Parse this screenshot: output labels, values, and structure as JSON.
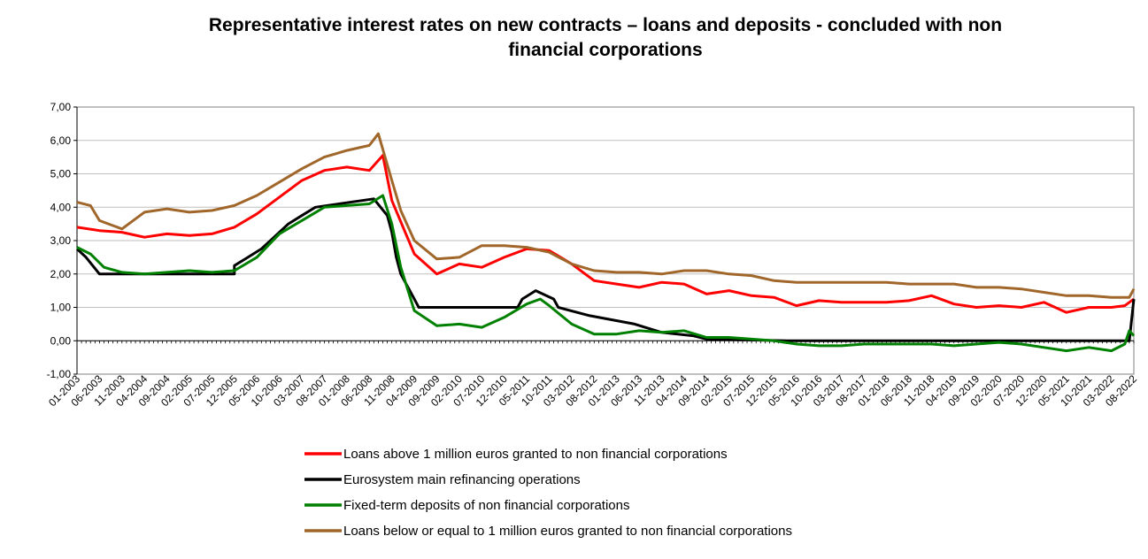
{
  "chart_data": {
    "type": "line",
    "title_line1": "Representative interest rates on new contracts – loans and deposits - concluded with non",
    "title_line2": "financial corporations",
    "xlabel": "",
    "ylabel": "",
    "ylim": [
      -1,
      7
    ],
    "yticks": [
      "-1,00",
      "0,00",
      "1,00",
      "2,00",
      "3,00",
      "4,00",
      "5,00",
      "6,00",
      "7,00"
    ],
    "grid": "horizontal",
    "legend_position": "bottom-center",
    "x_tick_labels": [
      "01-2003",
      "06-2003",
      "11-2003",
      "04-2004",
      "09-2004",
      "02-2005",
      "07-2005",
      "12-2005",
      "05-2006",
      "10-2006",
      "03-2007",
      "08-2007",
      "01-2008",
      "06-2008",
      "11-2008",
      "04-2009",
      "09-2009",
      "02-2010",
      "07-2010",
      "12-2010",
      "05-2011",
      "10-2011",
      "03-2012",
      "08-2012",
      "01-2013",
      "06-2013",
      "11-2013",
      "04-2014",
      "09-2014",
      "02-2015",
      "07-2015",
      "12-2015",
      "05-2016",
      "10-2016",
      "03-2017",
      "08-2017",
      "01-2018",
      "06-2018",
      "11-2018",
      "04-2019",
      "09-2019",
      "02-2020",
      "07-2020",
      "12-2020",
      "05-2021",
      "10-2021",
      "03-2022",
      "08-2022"
    ],
    "x_start": "01-2003",
    "x_end": "08-2022",
    "series": [
      {
        "name": "Loans above 1 million euros granted to non financial corporations",
        "color": "#ff0000",
        "points": [
          [
            "01-2003",
            3.4
          ],
          [
            "06-2003",
            3.3
          ],
          [
            "11-2003",
            3.25
          ],
          [
            "04-2004",
            3.1
          ],
          [
            "09-2004",
            3.2
          ],
          [
            "02-2005",
            3.15
          ],
          [
            "07-2005",
            3.2
          ],
          [
            "12-2005",
            3.4
          ],
          [
            "05-2006",
            3.8
          ],
          [
            "10-2006",
            4.3
          ],
          [
            "03-2007",
            4.8
          ],
          [
            "08-2007",
            5.1
          ],
          [
            "01-2008",
            5.2
          ],
          [
            "06-2008",
            5.1
          ],
          [
            "09-2008",
            5.55
          ],
          [
            "11-2008",
            4.2
          ],
          [
            "04-2009",
            2.6
          ],
          [
            "09-2009",
            2.0
          ],
          [
            "02-2010",
            2.3
          ],
          [
            "07-2010",
            2.2
          ],
          [
            "12-2010",
            2.5
          ],
          [
            "05-2011",
            2.75
          ],
          [
            "10-2011",
            2.7
          ],
          [
            "03-2012",
            2.3
          ],
          [
            "08-2012",
            1.8
          ],
          [
            "01-2013",
            1.7
          ],
          [
            "06-2013",
            1.6
          ],
          [
            "11-2013",
            1.75
          ],
          [
            "04-2014",
            1.7
          ],
          [
            "09-2014",
            1.4
          ],
          [
            "02-2015",
            1.5
          ],
          [
            "07-2015",
            1.35
          ],
          [
            "12-2015",
            1.3
          ],
          [
            "05-2016",
            1.05
          ],
          [
            "10-2016",
            1.2
          ],
          [
            "03-2017",
            1.15
          ],
          [
            "08-2017",
            1.15
          ],
          [
            "01-2018",
            1.15
          ],
          [
            "06-2018",
            1.2
          ],
          [
            "11-2018",
            1.35
          ],
          [
            "04-2019",
            1.1
          ],
          [
            "09-2019",
            1.0
          ],
          [
            "02-2020",
            1.05
          ],
          [
            "07-2020",
            1.0
          ],
          [
            "12-2020",
            1.15
          ],
          [
            "05-2021",
            0.85
          ],
          [
            "10-2021",
            1.0
          ],
          [
            "03-2022",
            1.0
          ],
          [
            "06-2022",
            1.05
          ],
          [
            "08-2022",
            1.25
          ]
        ]
      },
      {
        "name": "Eurosystem main refinancing operations",
        "color": "#000000",
        "points": [
          [
            "01-2003",
            2.75
          ],
          [
            "03-2003",
            2.5
          ],
          [
            "06-2003",
            2.0
          ],
          [
            "12-2005",
            2.0
          ],
          [
            "12-2005",
            2.25
          ],
          [
            "03-2006",
            2.5
          ],
          [
            "06-2006",
            2.75
          ],
          [
            "08-2006",
            3.0
          ],
          [
            "10-2006",
            3.25
          ],
          [
            "12-2006",
            3.5
          ],
          [
            "03-2007",
            3.75
          ],
          [
            "06-2007",
            4.0
          ],
          [
            "07-2008",
            4.25
          ],
          [
            "10-2008",
            3.75
          ],
          [
            "11-2008",
            3.25
          ],
          [
            "12-2008",
            2.5
          ],
          [
            "01-2009",
            2.0
          ],
          [
            "03-2009",
            1.5
          ],
          [
            "04-2009",
            1.25
          ],
          [
            "05-2009",
            1.0
          ],
          [
            "03-2011",
            1.0
          ],
          [
            "04-2011",
            1.25
          ],
          [
            "07-2011",
            1.5
          ],
          [
            "11-2011",
            1.25
          ],
          [
            "12-2011",
            1.0
          ],
          [
            "07-2012",
            0.75
          ],
          [
            "05-2013",
            0.5
          ],
          [
            "11-2013",
            0.25
          ],
          [
            "06-2014",
            0.15
          ],
          [
            "09-2014",
            0.05
          ],
          [
            "03-2016",
            0.0
          ],
          [
            "07-2022",
            0.0
          ],
          [
            "08-2022",
            1.25
          ]
        ]
      },
      {
        "name": "Fixed-term deposits of non financial corporations",
        "color": "#008000",
        "points": [
          [
            "01-2003",
            2.8
          ],
          [
            "04-2003",
            2.6
          ],
          [
            "07-2003",
            2.2
          ],
          [
            "11-2003",
            2.05
          ],
          [
            "04-2004",
            2.0
          ],
          [
            "09-2004",
            2.05
          ],
          [
            "02-2005",
            2.1
          ],
          [
            "07-2005",
            2.05
          ],
          [
            "12-2005",
            2.1
          ],
          [
            "05-2006",
            2.5
          ],
          [
            "10-2006",
            3.2
          ],
          [
            "03-2007",
            3.6
          ],
          [
            "08-2007",
            4.0
          ],
          [
            "01-2008",
            4.05
          ],
          [
            "06-2008",
            4.1
          ],
          [
            "09-2008",
            4.35
          ],
          [
            "11-2008",
            3.5
          ],
          [
            "01-2009",
            2.2
          ],
          [
            "04-2009",
            0.9
          ],
          [
            "09-2009",
            0.45
          ],
          [
            "02-2010",
            0.5
          ],
          [
            "07-2010",
            0.4
          ],
          [
            "12-2010",
            0.7
          ],
          [
            "05-2011",
            1.1
          ],
          [
            "08-2011",
            1.25
          ],
          [
            "10-2011",
            1.05
          ],
          [
            "03-2012",
            0.5
          ],
          [
            "08-2012",
            0.2
          ],
          [
            "01-2013",
            0.2
          ],
          [
            "06-2013",
            0.3
          ],
          [
            "11-2013",
            0.25
          ],
          [
            "04-2014",
            0.3
          ],
          [
            "09-2014",
            0.1
          ],
          [
            "02-2015",
            0.1
          ],
          [
            "07-2015",
            0.05
          ],
          [
            "12-2015",
            0.0
          ],
          [
            "05-2016",
            -0.1
          ],
          [
            "10-2016",
            -0.15
          ],
          [
            "03-2017",
            -0.15
          ],
          [
            "08-2017",
            -0.1
          ],
          [
            "01-2018",
            -0.1
          ],
          [
            "06-2018",
            -0.1
          ],
          [
            "11-2018",
            -0.1
          ],
          [
            "04-2019",
            -0.15
          ],
          [
            "09-2019",
            -0.1
          ],
          [
            "02-2020",
            -0.05
          ],
          [
            "07-2020",
            -0.1
          ],
          [
            "12-2020",
            -0.2
          ],
          [
            "05-2021",
            -0.3
          ],
          [
            "10-2021",
            -0.2
          ],
          [
            "03-2022",
            -0.3
          ],
          [
            "06-2022",
            -0.1
          ],
          [
            "07-2022",
            0.3
          ],
          [
            "08-2022",
            0.15
          ]
        ]
      },
      {
        "name": "Loans below or equal to 1 million euros granted to non financial corporations",
        "color": "#a0662a",
        "points": [
          [
            "01-2003",
            4.15
          ],
          [
            "04-2003",
            4.05
          ],
          [
            "06-2003",
            3.6
          ],
          [
            "11-2003",
            3.35
          ],
          [
            "04-2004",
            3.85
          ],
          [
            "09-2004",
            3.95
          ],
          [
            "02-2005",
            3.85
          ],
          [
            "07-2005",
            3.9
          ],
          [
            "12-2005",
            4.05
          ],
          [
            "05-2006",
            4.35
          ],
          [
            "10-2006",
            4.75
          ],
          [
            "03-2007",
            5.15
          ],
          [
            "08-2007",
            5.5
          ],
          [
            "01-2008",
            5.7
          ],
          [
            "06-2008",
            5.85
          ],
          [
            "08-2008",
            6.2
          ],
          [
            "11-2008",
            4.8
          ],
          [
            "01-2009",
            3.9
          ],
          [
            "04-2009",
            3.0
          ],
          [
            "09-2009",
            2.45
          ],
          [
            "02-2010",
            2.5
          ],
          [
            "07-2010",
            2.85
          ],
          [
            "12-2010",
            2.85
          ],
          [
            "05-2011",
            2.8
          ],
          [
            "10-2011",
            2.65
          ],
          [
            "03-2012",
            2.3
          ],
          [
            "08-2012",
            2.1
          ],
          [
            "01-2013",
            2.05
          ],
          [
            "06-2013",
            2.05
          ],
          [
            "11-2013",
            2.0
          ],
          [
            "04-2014",
            2.1
          ],
          [
            "09-2014",
            2.1
          ],
          [
            "02-2015",
            2.0
          ],
          [
            "07-2015",
            1.95
          ],
          [
            "12-2015",
            1.8
          ],
          [
            "05-2016",
            1.75
          ],
          [
            "10-2016",
            1.75
          ],
          [
            "03-2017",
            1.75
          ],
          [
            "08-2017",
            1.75
          ],
          [
            "01-2018",
            1.75
          ],
          [
            "06-2018",
            1.7
          ],
          [
            "11-2018",
            1.7
          ],
          [
            "04-2019",
            1.7
          ],
          [
            "09-2019",
            1.6
          ],
          [
            "02-2020",
            1.6
          ],
          [
            "07-2020",
            1.55
          ],
          [
            "12-2020",
            1.45
          ],
          [
            "05-2021",
            1.35
          ],
          [
            "10-2021",
            1.35
          ],
          [
            "03-2022",
            1.3
          ],
          [
            "07-2022",
            1.3
          ],
          [
            "08-2022",
            1.55
          ]
        ]
      }
    ]
  }
}
